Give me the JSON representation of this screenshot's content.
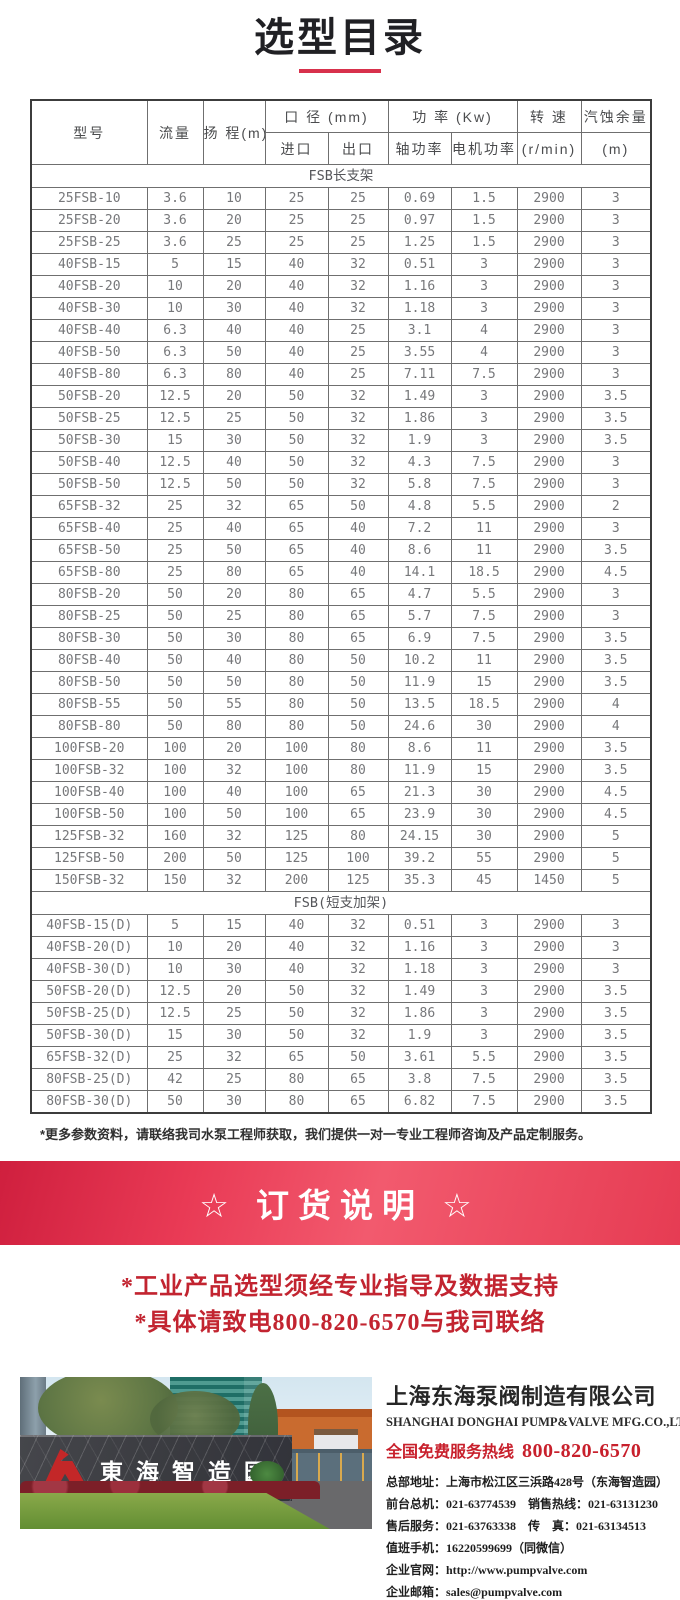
{
  "page": {
    "title": "选型目录"
  },
  "table": {
    "header": {
      "model": "型号",
      "flow": "流量",
      "head": "扬 程(m)",
      "diameter": "口 径 (mm)",
      "inlet": "进口",
      "outlet": "出口",
      "power": "功 率 (Kw)",
      "shaft_power": "轴功率",
      "motor_power": "电机功率",
      "speed": "转 速",
      "speed_unit": "(r/min)",
      "npsh": "汽蚀余量",
      "npsh_unit": "(m)"
    },
    "sections": [
      {
        "name": "FSB长支架",
        "rows": [
          [
            "25FSB-10",
            "3.6",
            "10",
            "25",
            "25",
            "0.69",
            "1.5",
            "2900",
            "3"
          ],
          [
            "25FSB-20",
            "3.6",
            "20",
            "25",
            "25",
            "0.97",
            "1.5",
            "2900",
            "3"
          ],
          [
            "25FSB-25",
            "3.6",
            "25",
            "25",
            "25",
            "1.25",
            "1.5",
            "2900",
            "3"
          ],
          [
            "40FSB-15",
            "5",
            "15",
            "40",
            "32",
            "0.51",
            "3",
            "2900",
            "3"
          ],
          [
            "40FSB-20",
            "10",
            "20",
            "40",
            "32",
            "1.16",
            "3",
            "2900",
            "3"
          ],
          [
            "40FSB-30",
            "10",
            "30",
            "40",
            "32",
            "1.18",
            "3",
            "2900",
            "3"
          ],
          [
            "40FSB-40",
            "6.3",
            "40",
            "40",
            "25",
            "3.1",
            "4",
            "2900",
            "3"
          ],
          [
            "40FSB-50",
            "6.3",
            "50",
            "40",
            "25",
            "3.55",
            "4",
            "2900",
            "3"
          ],
          [
            "40FSB-80",
            "6.3",
            "80",
            "40",
            "25",
            "7.11",
            "7.5",
            "2900",
            "3"
          ],
          [
            "50FSB-20",
            "12.5",
            "20",
            "50",
            "32",
            "1.49",
            "3",
            "2900",
            "3.5"
          ],
          [
            "50FSB-25",
            "12.5",
            "25",
            "50",
            "32",
            "1.86",
            "3",
            "2900",
            "3.5"
          ],
          [
            "50FSB-30",
            "15",
            "30",
            "50",
            "32",
            "1.9",
            "3",
            "2900",
            "3.5"
          ],
          [
            "50FSB-40",
            "12.5",
            "40",
            "50",
            "32",
            "4.3",
            "7.5",
            "2900",
            "3"
          ],
          [
            "50FSB-50",
            "12.5",
            "50",
            "50",
            "32",
            "5.8",
            "7.5",
            "2900",
            "3"
          ],
          [
            "65FSB-32",
            "25",
            "32",
            "65",
            "50",
            "4.8",
            "5.5",
            "2900",
            "2"
          ],
          [
            "65FSB-40",
            "25",
            "40",
            "65",
            "40",
            "7.2",
            "11",
            "2900",
            "3"
          ],
          [
            "65FSB-50",
            "25",
            "50",
            "65",
            "40",
            "8.6",
            "11",
            "2900",
            "3.5"
          ],
          [
            "65FSB-80",
            "25",
            "80",
            "65",
            "40",
            "14.1",
            "18.5",
            "2900",
            "4.5"
          ],
          [
            "80FSB-20",
            "50",
            "20",
            "80",
            "65",
            "4.7",
            "5.5",
            "2900",
            "3"
          ],
          [
            "80FSB-25",
            "50",
            "25",
            "80",
            "65",
            "5.7",
            "7.5",
            "2900",
            "3"
          ],
          [
            "80FSB-30",
            "50",
            "30",
            "80",
            "65",
            "6.9",
            "7.5",
            "2900",
            "3.5"
          ],
          [
            "80FSB-40",
            "50",
            "40",
            "80",
            "50",
            "10.2",
            "11",
            "2900",
            "3.5"
          ],
          [
            "80FSB-50",
            "50",
            "50",
            "80",
            "50",
            "11.9",
            "15",
            "2900",
            "3.5"
          ],
          [
            "80FSB-55",
            "50",
            "55",
            "80",
            "50",
            "13.5",
            "18.5",
            "2900",
            "4"
          ],
          [
            "80FSB-80",
            "50",
            "80",
            "80",
            "50",
            "24.6",
            "30",
            "2900",
            "4"
          ],
          [
            "100FSB-20",
            "100",
            "20",
            "100",
            "80",
            "8.6",
            "11",
            "2900",
            "3.5"
          ],
          [
            "100FSB-32",
            "100",
            "32",
            "100",
            "80",
            "11.9",
            "15",
            "2900",
            "3.5"
          ],
          [
            "100FSB-40",
            "100",
            "40",
            "100",
            "65",
            "21.3",
            "30",
            "2900",
            "4.5"
          ],
          [
            "100FSB-50",
            "100",
            "50",
            "100",
            "65",
            "23.9",
            "30",
            "2900",
            "4.5"
          ],
          [
            "125FSB-32",
            "160",
            "32",
            "125",
            "80",
            "24.15",
            "30",
            "2900",
            "5"
          ],
          [
            "125FSB-50",
            "200",
            "50",
            "125",
            "100",
            "39.2",
            "55",
            "2900",
            "5"
          ],
          [
            "150FSB-32",
            "150",
            "32",
            "200",
            "125",
            "35.3",
            "45",
            "1450",
            "5"
          ]
        ]
      },
      {
        "name": "FSB(短支加架)",
        "rows": [
          [
            "40FSB-15(D)",
            "5",
            "15",
            "40",
            "32",
            "0.51",
            "3",
            "2900",
            "3"
          ],
          [
            "40FSB-20(D)",
            "10",
            "20",
            "40",
            "32",
            "1.16",
            "3",
            "2900",
            "3"
          ],
          [
            "40FSB-30(D)",
            "10",
            "30",
            "40",
            "32",
            "1.18",
            "3",
            "2900",
            "3"
          ],
          [
            "50FSB-20(D)",
            "12.5",
            "20",
            "50",
            "32",
            "1.49",
            "3",
            "2900",
            "3.5"
          ],
          [
            "50FSB-25(D)",
            "12.5",
            "25",
            "50",
            "32",
            "1.86",
            "3",
            "2900",
            "3.5"
          ],
          [
            "50FSB-30(D)",
            "15",
            "30",
            "50",
            "32",
            "1.9",
            "3",
            "2900",
            "3.5"
          ],
          [
            "65FSB-32(D)",
            "25",
            "32",
            "65",
            "50",
            "3.61",
            "5.5",
            "2900",
            "3.5"
          ],
          [
            "80FSB-25(D)",
            "42",
            "25",
            "80",
            "65",
            "3.8",
            "7.5",
            "2900",
            "3.5"
          ],
          [
            "80FSB-30(D)",
            "50",
            "30",
            "80",
            "65",
            "6.82",
            "7.5",
            "2900",
            "3.5"
          ]
        ]
      }
    ]
  },
  "footnote": "*更多参数资料，请联络我司水泵工程师获取，我们提供一对一专业工程师咨询及产品定制服务。",
  "banner": {
    "text": "☆ 订货说明 ☆"
  },
  "notices": [
    "*工业产品选型须经专业指导及数据支持",
    "*具体请致电800-820-6570与我司联络"
  ],
  "company": {
    "photo_sign": "東海智造园",
    "name_cn": "上海东海泵阀制造有限公司",
    "name_en": "SHANGHAI DONGHAI PUMP&VALVE MFG.CO.,LTD.",
    "hotline_label": "全国免费服务热线",
    "hotline_number": "800-820-6570",
    "details": [
      "总部地址：上海市松江区三浜路428号（东海智造园）",
      "前台总机：021-63774539　销售热线：021-63131230",
      "售后服务：021-63763338　传　真：021-63134513",
      "值班手机：16220599699（同微信）",
      "企业官网：http://www.pumpvalve.com",
      "企业邮箱：sales@pumpvalve.com"
    ]
  },
  "colors": {
    "accent_red": "#d8314c",
    "banner_red_dark": "#cf1f3e",
    "banner_red_light": "#f25a6e",
    "notice_red": "#c22430",
    "hotline_red": "#c8202c",
    "logo_red": "#c32728",
    "table_text_gray": "#76777a"
  }
}
